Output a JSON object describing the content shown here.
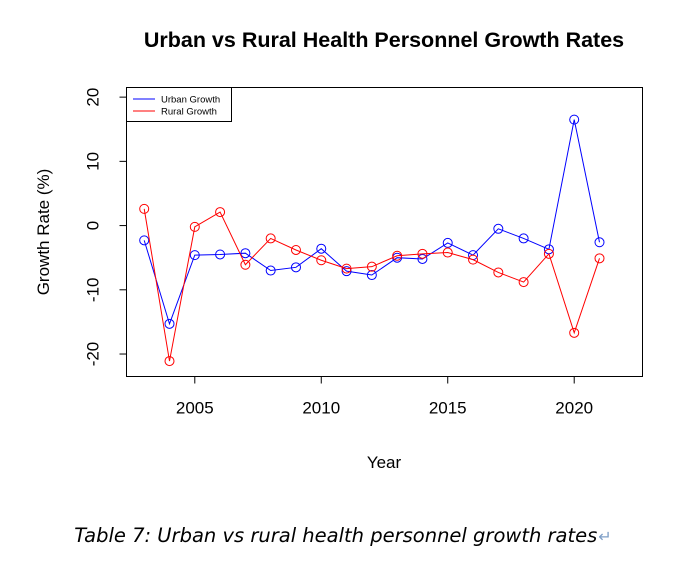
{
  "chart_data": {
    "type": "line",
    "title": "Urban vs Rural Health Personnel Growth Rates",
    "xlabel": "Year",
    "ylabel": "Growth Rate (%)",
    "xlim": [
      2002.3,
      2022.7
    ],
    "ylim": [
      -23.5,
      21.5
    ],
    "x_ticks": [
      2005,
      2010,
      2015,
      2020
    ],
    "y_ticks": [
      -20,
      -10,
      0,
      10,
      20
    ],
    "legend_position": "top-left",
    "x": [
      2003,
      2004,
      2005,
      2006,
      2007,
      2008,
      2009,
      2010,
      2011,
      2012,
      2013,
      2014,
      2015,
      2016,
      2017,
      2018,
      2019,
      2020,
      2021
    ],
    "series": [
      {
        "name": "Urban Growth",
        "color": "#0000ff",
        "values": [
          -2.3,
          -15.3,
          -4.6,
          -4.5,
          -4.3,
          -7.0,
          -6.5,
          -3.6,
          -7.1,
          -7.7,
          -5.0,
          -5.2,
          -2.7,
          -4.6,
          -0.5,
          -2.0,
          -3.7,
          16.5,
          -2.6
        ]
      },
      {
        "name": "Rural Growth",
        "color": "#ff0000",
        "values": [
          2.6,
          -21.1,
          -0.2,
          2.1,
          -6.1,
          -2.0,
          -3.8,
          -5.4,
          -6.7,
          -6.4,
          -4.7,
          -4.4,
          -4.2,
          -5.3,
          -7.3,
          -8.8,
          -4.4,
          -16.7,
          -5.1
        ]
      }
    ]
  },
  "caption": {
    "text": "Table 7: Urban vs rural health personnel growth rates",
    "return_mark": "↵"
  }
}
